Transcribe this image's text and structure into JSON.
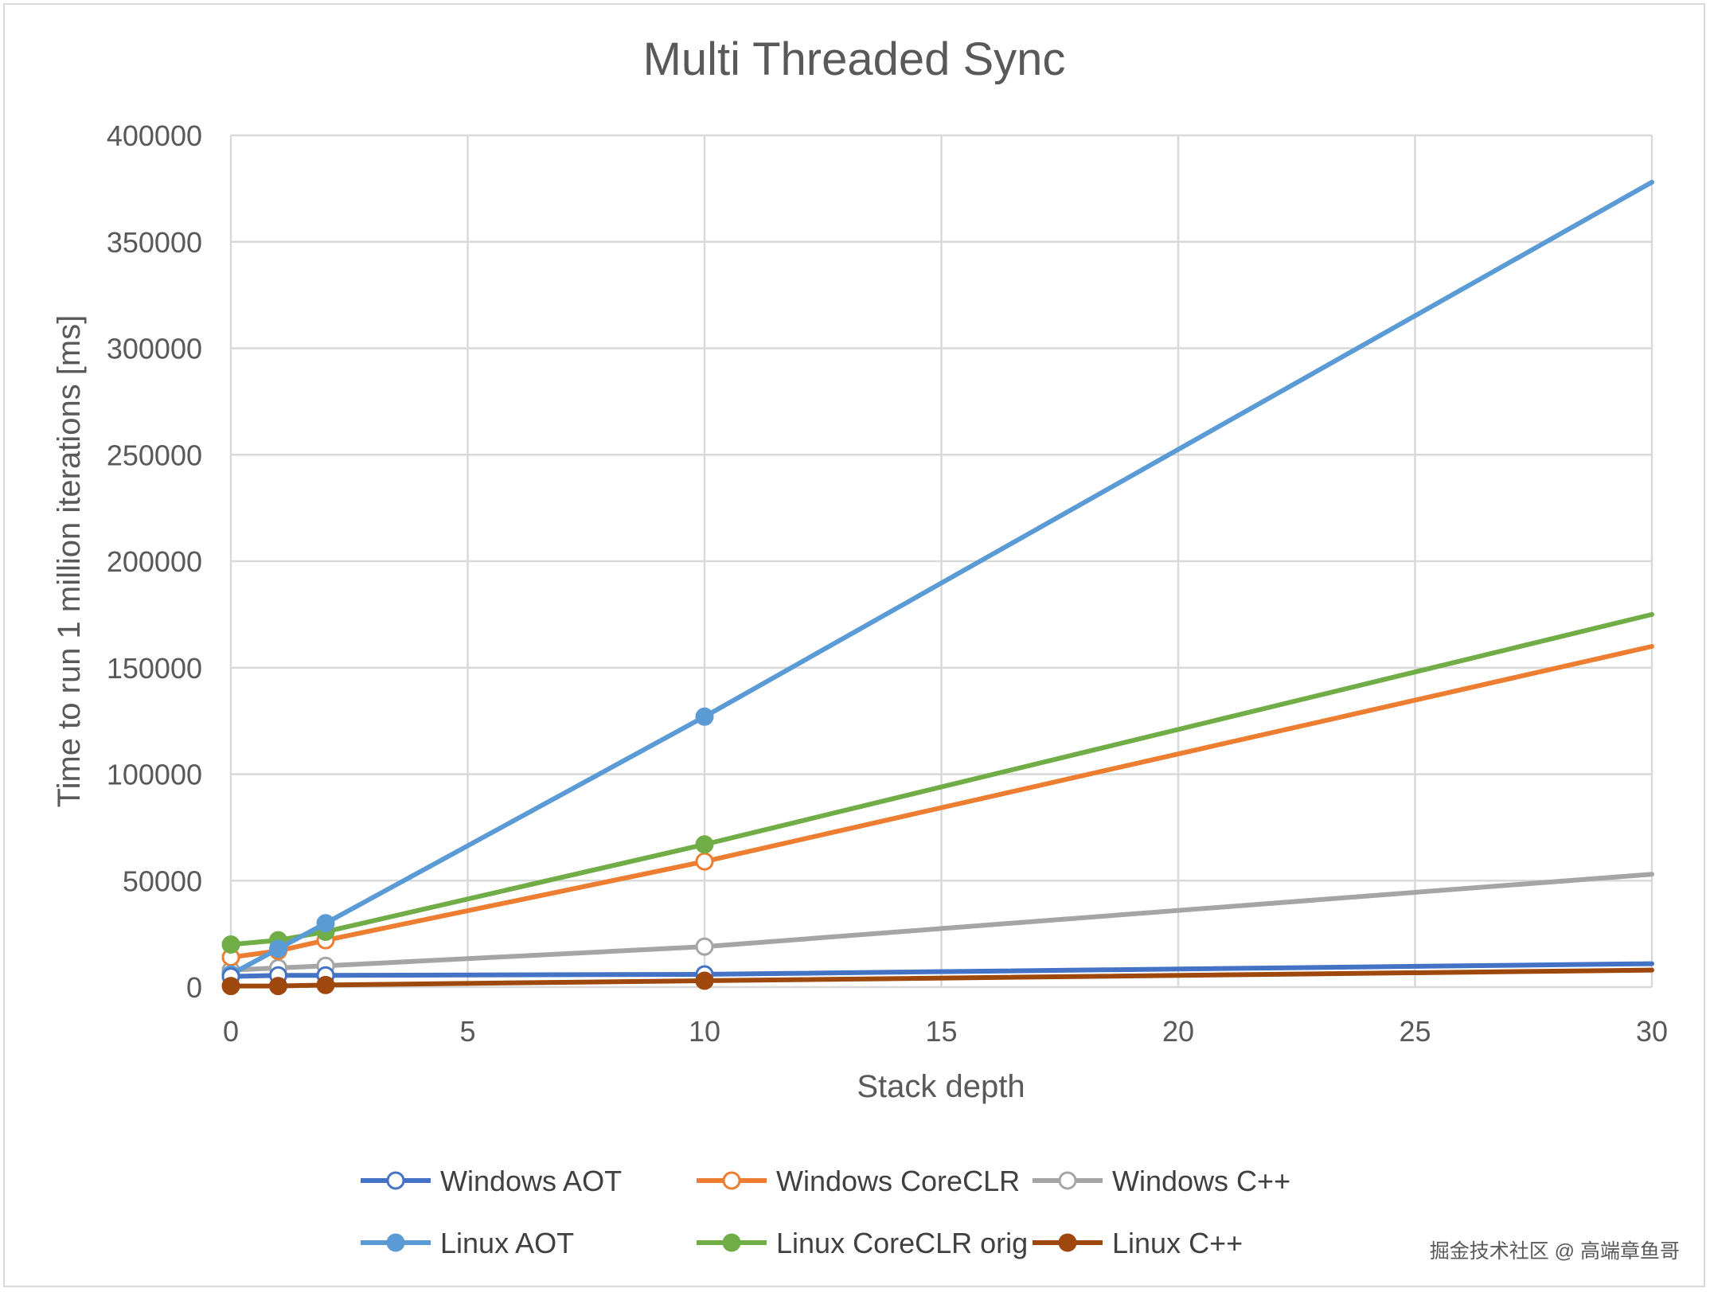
{
  "chart_data": {
    "type": "line",
    "title": "Multi Threaded Sync",
    "xlabel": "Stack depth",
    "ylabel": "Time to run 1 million iterations [ms]",
    "xlim": [
      0,
      30
    ],
    "ylim": [
      0,
      400000
    ],
    "xticks": [
      0,
      5,
      10,
      15,
      20,
      25,
      30
    ],
    "yticks": [
      0,
      50000,
      100000,
      150000,
      200000,
      250000,
      300000,
      350000,
      400000
    ],
    "xtick_labels": [
      "0",
      "5",
      "10",
      "15",
      "20",
      "25",
      "30"
    ],
    "ytick_labels": [
      "0",
      "50000",
      "100000",
      "150000",
      "200000",
      "250000",
      "300000",
      "350000",
      "400000"
    ],
    "grid": true,
    "legend_position": "bottom",
    "series": [
      {
        "name": "Windows AOT",
        "color": "#4472C4",
        "marker": "open-circle",
        "x": [
          0,
          1,
          2,
          10,
          30
        ],
        "y": [
          5000,
          5500,
          5500,
          6000,
          11000
        ]
      },
      {
        "name": "Windows CoreCLR",
        "color": "#ED7D31",
        "marker": "open-circle",
        "x": [
          0,
          1,
          2,
          10,
          30
        ],
        "y": [
          14000,
          17000,
          22000,
          59000,
          160000
        ]
      },
      {
        "name": "Windows C++",
        "color": "#A5A5A5",
        "marker": "open-circle",
        "x": [
          0,
          1,
          2,
          10,
          30
        ],
        "y": [
          8000,
          9000,
          10000,
          19000,
          53000
        ]
      },
      {
        "name": "Linux AOT",
        "color": "#5B9BD5",
        "marker": "filled-circle",
        "x": [
          0,
          1,
          2,
          10,
          30
        ],
        "y": [
          6000,
          18000,
          30000,
          127000,
          378000
        ]
      },
      {
        "name": "Linux CoreCLR orig",
        "color": "#70AD47",
        "marker": "filled-circle",
        "x": [
          0,
          1,
          2,
          10,
          30
        ],
        "y": [
          20000,
          22000,
          26000,
          67000,
          175000
        ]
      },
      {
        "name": "Linux C++",
        "color": "#9E480E",
        "marker": "filled-circle",
        "x": [
          0,
          1,
          2,
          10,
          30
        ],
        "y": [
          500,
          500,
          1000,
          3000,
          8000
        ]
      }
    ]
  },
  "watermark": "掘金技术社区 @ 高端章鱼哥"
}
